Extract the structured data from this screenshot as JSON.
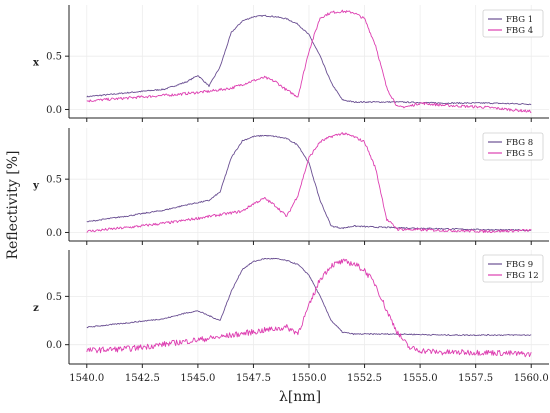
{
  "chart_data": {
    "type": "line",
    "xlabel": "λ[nm]",
    "ylabel": "Reflectivity [%]",
    "xlim": [
      1539.2,
      1560.8
    ],
    "x_ticks": [
      1540.0,
      1542.5,
      1545.0,
      1547.5,
      1550.0,
      1552.5,
      1555.0,
      1557.5,
      1560.0
    ],
    "x_tick_labels": [
      "1540.0",
      "1542.5",
      "1545.0",
      "1547.5",
      "1550.0",
      "1552.5",
      "1555.0",
      "1557.5",
      "1560.0"
    ],
    "grid": true,
    "legend_position": "top-right",
    "panels": [
      {
        "label": "x",
        "ylim": [
          -0.08,
          0.98
        ],
        "y_ticks": [
          0.0,
          0.5
        ],
        "y_tick_labels": [
          "0.0",
          "0.5"
        ],
        "series": [
          {
            "name": "FBG 1",
            "color": "#6a4f92",
            "x": [
              1540,
              1542,
              1543.5,
              1544.5,
              1545,
              1545.5,
              1546,
              1546.5,
              1547,
              1547.5,
              1548,
              1548.5,
              1549,
              1549.5,
              1550,
              1550.5,
              1551,
              1551.5,
              1552,
              1554,
              1556,
              1558,
              1560
            ],
            "y": [
              0.12,
              0.16,
              0.19,
              0.26,
              0.32,
              0.22,
              0.4,
              0.72,
              0.83,
              0.87,
              0.88,
              0.87,
              0.85,
              0.8,
              0.7,
              0.5,
              0.25,
              0.09,
              0.07,
              0.07,
              0.06,
              0.06,
              0.05
            ]
          },
          {
            "name": "FBG 4",
            "color": "#dd3fb1",
            "x": [
              1540,
              1542,
              1544,
              1545.5,
              1546.5,
              1547.5,
              1548,
              1548.5,
              1549,
              1549.5,
              1550,
              1550.5,
              1551,
              1551.5,
              1552,
              1552.5,
              1553,
              1553.5,
              1554,
              1554.5,
              1555,
              1556,
              1558,
              1560
            ],
            "y": [
              0.08,
              0.11,
              0.14,
              0.17,
              0.2,
              0.27,
              0.3,
              0.26,
              0.18,
              0.12,
              0.55,
              0.86,
              0.91,
              0.92,
              0.91,
              0.85,
              0.6,
              0.2,
              0.02,
              0.03,
              0.06,
              0.04,
              0.02,
              -0.02
            ]
          }
        ]
      },
      {
        "label": "y",
        "ylim": [
          -0.08,
          0.98
        ],
        "y_ticks": [
          0.0,
          0.5
        ],
        "y_tick_labels": [
          "0.0",
          "0.5"
        ],
        "series": [
          {
            "name": "FBG 8",
            "color": "#6a4f92",
            "x": [
              1540,
              1542,
              1543.5,
              1544.5,
              1545.5,
              1546,
              1546.5,
              1547,
              1547.5,
              1548,
              1548.5,
              1549,
              1549.5,
              1550,
              1550.5,
              1551,
              1551.5,
              1552,
              1553,
              1555,
              1557,
              1560
            ],
            "y": [
              0.1,
              0.16,
              0.21,
              0.26,
              0.3,
              0.38,
              0.7,
              0.86,
              0.9,
              0.91,
              0.9,
              0.88,
              0.82,
              0.65,
              0.3,
              0.06,
              0.04,
              0.06,
              0.05,
              0.04,
              0.03,
              0.02
            ]
          },
          {
            "name": "FBG 5",
            "color": "#dd3fb1",
            "x": [
              1540,
              1542,
              1544,
              1545.5,
              1547,
              1547.5,
              1548,
              1548.5,
              1549,
              1549.5,
              1550,
              1550.5,
              1551,
              1551.5,
              1552,
              1552.5,
              1553,
              1553.5,
              1554,
              1556,
              1558,
              1560
            ],
            "y": [
              0.01,
              0.05,
              0.1,
              0.15,
              0.2,
              0.27,
              0.32,
              0.25,
              0.15,
              0.35,
              0.7,
              0.85,
              0.9,
              0.93,
              0.9,
              0.85,
              0.6,
              0.12,
              0.03,
              0.02,
              0.01,
              0.02
            ]
          }
        ]
      },
      {
        "label": "z",
        "ylim": [
          -0.2,
          0.98
        ],
        "y_ticks": [
          0.0,
          0.5
        ],
        "y_tick_labels": [
          "0.0",
          "0.5"
        ],
        "series": [
          {
            "name": "FBG 9",
            "color": "#6a4f92",
            "x": [
              1540,
              1542,
              1543.5,
              1544.5,
              1545,
              1545.5,
              1546,
              1546.5,
              1547,
              1547.5,
              1548,
              1548.5,
              1549,
              1549.5,
              1550,
              1550.5,
              1551,
              1551.5,
              1552,
              1554,
              1556,
              1558,
              1560
            ],
            "y": [
              0.18,
              0.23,
              0.27,
              0.33,
              0.35,
              0.3,
              0.25,
              0.55,
              0.78,
              0.86,
              0.89,
              0.89,
              0.87,
              0.83,
              0.72,
              0.5,
              0.25,
              0.13,
              0.11,
              0.11,
              0.1,
              0.1,
              0.1
            ]
          },
          {
            "name": "FBG 12",
            "color": "#dd3fb1",
            "x": [
              1540,
              1542,
              1544,
              1546,
              1548,
              1549,
              1549.5,
              1550,
              1550.5,
              1551,
              1551.5,
              1552,
              1552.5,
              1553,
              1553.5,
              1554,
              1554.5,
              1555,
              1556,
              1558,
              1560
            ],
            "y": [
              -0.06,
              -0.04,
              0.02,
              0.08,
              0.15,
              0.18,
              0.12,
              0.4,
              0.68,
              0.82,
              0.86,
              0.84,
              0.77,
              0.62,
              0.35,
              0.12,
              -0.03,
              -0.06,
              -0.08,
              -0.08,
              -0.1
            ]
          }
        ]
      }
    ]
  }
}
